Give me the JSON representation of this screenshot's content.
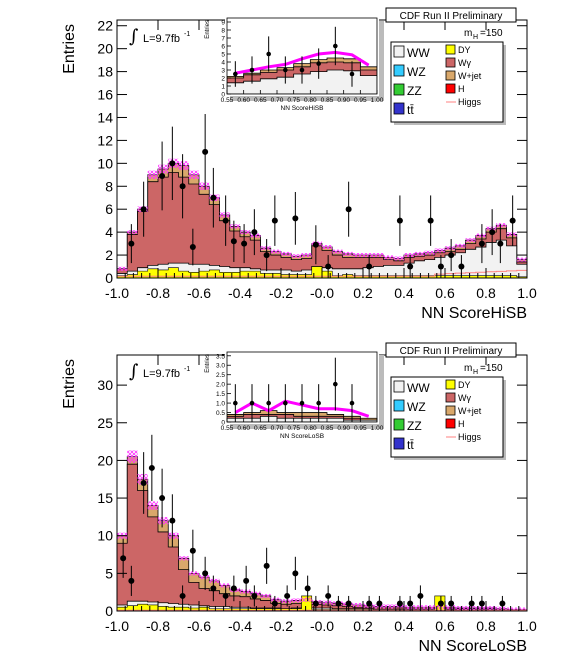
{
  "chart_data": [
    {
      "type": "bar",
      "title": "CDF Run II Preliminary",
      "mass_label": "m",
      "mass_sub": "H",
      "mass_value": "=150",
      "lumi_text": "L=9.7fb",
      "lumi_sup": "-1",
      "integral_symbol": "∫",
      "xlabel": "NN ScoreHiSB",
      "ylabel": "Entries",
      "xlim": [
        -1.0,
        1.0
      ],
      "ylim": [
        0,
        22.5
      ],
      "x_ticks": [
        "-1.0",
        "-0.8",
        "-0.6",
        "-0.4",
        "-0.2",
        "-0.0",
        "0.2",
        "0.4",
        "0.6",
        "0.8",
        "1.0"
      ],
      "y_ticks": [
        "0",
        "2",
        "4",
        "6",
        "8",
        "10",
        "12",
        "14",
        "16",
        "18",
        "20",
        "22"
      ],
      "legend": [
        {
          "label": "WW",
          "color": "#f2f2f2"
        },
        {
          "label": "DY",
          "color": "#ffff00"
        },
        {
          "label": "WZ",
          "color": "#33ccff"
        },
        {
          "label": "Wγ",
          "color": "#cc6666"
        },
        {
          "label": "ZZ",
          "color": "#33cc33"
        },
        {
          "label": "W+jet",
          "color": "#d9a86b"
        },
        {
          "label": "tt̄",
          "color": "#3333cc"
        },
        {
          "label": "H",
          "color": "#ff0000"
        },
        {
          "label": "Higgs",
          "color": "#ff8080"
        }
      ],
      "stack_total": [
        0.8,
        4,
        6,
        9,
        9.5,
        10,
        9.8,
        9,
        8,
        7,
        5.5,
        4.5,
        4,
        3.7,
        2.6,
        2.3,
        2.1,
        1.9,
        2,
        3,
        2.7,
        2.3,
        2.1,
        2,
        2,
        2,
        1.8,
        1.7,
        2,
        2.1,
        2.2,
        2.4,
        2.6,
        2.8,
        3.3,
        3.7,
        4.3,
        4.6,
        3.8,
        1.6
      ],
      "wgamma_top": [
        0.8,
        3.8,
        5.8,
        8.4,
        8.8,
        9.2,
        8.8,
        8.2,
        7.3,
        6.4,
        5.0,
        4.1,
        3.6,
        3.3,
        2.3,
        2.0,
        1.8,
        1.6,
        1.7,
        2.8,
        2.4,
        2.0,
        1.8,
        1.8,
        1.8,
        1.8,
        1.6,
        1.5,
        1.8,
        1.9,
        2.0,
        2.2,
        2.3,
        2.5,
        3.0,
        3.4,
        4.0,
        4.3,
        3.5,
        1.4
      ],
      "ww_top": [
        0.4,
        0.6,
        0.9,
        1.1,
        1.2,
        1.3,
        1.3,
        1.2,
        1.2,
        1.1,
        1.0,
        0.9,
        0.9,
        0.8,
        0.7,
        0.7,
        0.7,
        0.6,
        0.7,
        1.0,
        0.9,
        0.8,
        0.8,
        0.8,
        0.9,
        1.0,
        1.1,
        1.1,
        1.3,
        1.5,
        1.6,
        1.8,
        2.0,
        2.2,
        2.5,
        2.7,
        3.1,
        3.3,
        2.8,
        1.2
      ],
      "dy_top": [
        0.2,
        0.3,
        0.6,
        0.8,
        0.7,
        0.9,
        0.6,
        0.5,
        0.6,
        0.7,
        0.5,
        0.5,
        0.6,
        0.6,
        0.4,
        0.4,
        0.3,
        0.3,
        0.3,
        1.0,
        0.6,
        0.2,
        0.3,
        0.2,
        0.2,
        0.2,
        0.2,
        0.2,
        0.2,
        0.2,
        0.2,
        0.2,
        0.2,
        0.2,
        0.2,
        0.2,
        0.2,
        0.2,
        0.2,
        0.1
      ],
      "points": [
        {
          "x": -0.93,
          "y": 3.0,
          "e": 1.7
        },
        {
          "x": -0.87,
          "y": 6.0,
          "e": 2.4
        },
        {
          "x": -0.78,
          "y": 8.9,
          "e": 3.0
        },
        {
          "x": -0.73,
          "y": 10.0,
          "e": 3.2
        },
        {
          "x": -0.68,
          "y": 8.0,
          "e": 2.8
        },
        {
          "x": -0.63,
          "y": 2.7,
          "e": 1.6
        },
        {
          "x": -0.57,
          "y": 11.0,
          "e": 3.3
        },
        {
          "x": -0.53,
          "y": 7.0,
          "e": 2.6
        },
        {
          "x": -0.47,
          "y": 5.0,
          "e": 2.2
        },
        {
          "x": -0.43,
          "y": 3.2,
          "e": 1.8
        },
        {
          "x": -0.38,
          "y": 3.0,
          "e": 1.7
        },
        {
          "x": -0.33,
          "y": 4.0,
          "e": 2.0
        },
        {
          "x": -0.27,
          "y": 2.0,
          "e": 1.4
        },
        {
          "x": -0.23,
          "y": 5.0,
          "e": 2.2
        },
        {
          "x": -0.13,
          "y": 5.2,
          "e": 2.3
        },
        {
          "x": -0.03,
          "y": 2.9,
          "e": 1.7
        },
        {
          "x": 0.03,
          "y": 1.0,
          "e": 1.0
        },
        {
          "x": 0.13,
          "y": 6.0,
          "e": 2.4
        },
        {
          "x": 0.23,
          "y": 1.0,
          "e": 1.0
        },
        {
          "x": 0.38,
          "y": 5.0,
          "e": 2.2
        },
        {
          "x": 0.43,
          "y": 1.0,
          "e": 1.0
        },
        {
          "x": 0.53,
          "y": 5.0,
          "e": 2.2
        },
        {
          "x": 0.58,
          "y": 1.0,
          "e": 1.0
        },
        {
          "x": 0.63,
          "y": 2.0,
          "e": 1.4
        },
        {
          "x": 0.68,
          "y": 1.0,
          "e": 1.0
        },
        {
          "x": 0.78,
          "y": 3.0,
          "e": 1.7
        },
        {
          "x": 0.83,
          "y": 4.0,
          "e": 2.0
        },
        {
          "x": 0.87,
          "y": 3.0,
          "e": 1.7
        },
        {
          "x": 0.93,
          "y": 5.0,
          "e": 2.2
        }
      ],
      "inset": {
        "xlabel": "NN ScoreHiSB",
        "ylabel": "Entries",
        "xlim": [
          0.55,
          1.0
        ],
        "ylim": [
          0,
          9.5
        ],
        "x_ticks": [
          "0.55",
          "0.60",
          "0.65",
          "0.70",
          "0.75",
          "0.80",
          "0.85",
          "0.90",
          "0.95",
          "1.00"
        ],
        "y_ticks": [
          "0",
          "1",
          "2",
          "3",
          "4",
          "5",
          "6",
          "7",
          "8",
          "9"
        ],
        "stack_total": [
          2.2,
          2.6,
          3.0,
          3.3,
          3.8,
          4.3,
          4.5,
          4.4,
          3.4
        ],
        "wgamma_top": [
          2.0,
          2.4,
          2.7,
          3.0,
          3.4,
          3.9,
          4.0,
          3.9,
          3.0
        ],
        "ww_top": [
          1.4,
          1.6,
          1.9,
          2.1,
          2.5,
          2.8,
          3.0,
          2.9,
          2.3
        ],
        "signal": [
          2.6,
          3.0,
          3.4,
          3.7,
          4.4,
          5.0,
          5.2,
          4.9,
          3.6
        ],
        "points": [
          {
            "x": 0.575,
            "y": 2.5,
            "e": 1.6
          },
          {
            "x": 0.625,
            "y": 3.0,
            "e": 1.7
          },
          {
            "x": 0.675,
            "y": 5.0,
            "e": 2.2
          },
          {
            "x": 0.725,
            "y": 3.0,
            "e": 1.7
          },
          {
            "x": 0.775,
            "y": 3.0,
            "e": 1.7
          },
          {
            "x": 0.825,
            "y": 3.8,
            "e": 1.9
          },
          {
            "x": 0.875,
            "y": 6.0,
            "e": 2.4
          },
          {
            "x": 0.925,
            "y": 2.5,
            "e": 1.6
          }
        ]
      }
    },
    {
      "type": "bar",
      "title": "CDF Run II Preliminary",
      "mass_label": "m",
      "mass_sub": "H",
      "mass_value": "=150",
      "lumi_text": "L=9.7fb",
      "lumi_sup": "-1",
      "integral_symbol": "∫",
      "xlabel": "NN ScoreLoSB",
      "ylabel": "Entries",
      "xlim": [
        -1.0,
        1.0
      ],
      "ylim": [
        0,
        34
      ],
      "x_ticks": [
        "-1.0",
        "-0.8",
        "-0.6",
        "-0.4",
        "-0.2",
        "-0.0",
        "0.2",
        "0.4",
        "0.6",
        "0.8",
        "1.0"
      ],
      "y_ticks": [
        "0",
        "5",
        "10",
        "15",
        "20",
        "25",
        "30"
      ],
      "legend": [
        {
          "label": "WW",
          "color": "#f2f2f2"
        },
        {
          "label": "DY",
          "color": "#ffff00"
        },
        {
          "label": "WZ",
          "color": "#33ccff"
        },
        {
          "label": "Wγ",
          "color": "#cc6666"
        },
        {
          "label": "ZZ",
          "color": "#33cc33"
        },
        {
          "label": "W+jet",
          "color": "#d9a86b"
        },
        {
          "label": "tt̄",
          "color": "#3333cc"
        },
        {
          "label": "H",
          "color": "#ff0000"
        },
        {
          "label": "Higgs",
          "color": "#ff8080"
        }
      ],
      "stack_total": [
        10,
        20.5,
        17.5,
        14,
        12,
        10,
        7,
        5,
        4.5,
        4,
        3.4,
        2.8,
        2.6,
        2.3,
        2,
        1.5,
        1.3,
        1.4,
        1.5,
        1.2,
        1.1,
        1.0,
        0.9,
        0.8,
        0.7,
        0.6,
        0.6,
        0.6,
        0.5,
        0.5,
        0.5,
        0.5,
        0.5,
        0.4,
        0.4,
        0.4,
        0.4,
        0.3,
        0.2,
        0.2
      ],
      "wgamma_top": [
        9,
        19.5,
        16,
        12.5,
        10.5,
        8.5,
        5.5,
        3.8,
        3.0,
        2.7,
        2.3,
        2.0,
        1.9,
        1.6,
        1.4,
        1.0,
        0.9,
        1.0,
        1.1,
        0.9,
        0.8,
        0.7,
        0.6,
        0.5,
        0.5,
        0.4,
        0.4,
        0.4,
        0.3,
        0.3,
        0.3,
        0.3,
        0.3,
        0.3,
        0.3,
        0.3,
        0.3,
        0.2,
        0.1,
        0.1
      ],
      "ww_top": [
        0.8,
        1.3,
        1.3,
        1.2,
        1.1,
        1.0,
        0.9,
        0.8,
        0.7,
        0.6,
        0.6,
        0.5,
        0.5,
        0.4,
        0.4,
        0.4,
        0.3,
        0.4,
        0.5,
        0.4,
        0.4,
        0.3,
        0.3,
        0.3,
        0.3,
        0.2,
        0.2,
        0.2,
        0.2,
        0.2,
        0.2,
        0.2,
        0.2,
        0.2,
        0.2,
        0.2,
        0.2,
        0.1,
        0.1,
        0.1
      ],
      "dy_top": [
        0.5,
        0.7,
        0.9,
        0.8,
        0.6,
        0.5,
        0.5,
        0.4,
        0.5,
        0.3,
        0.3,
        0.3,
        0.3,
        0.3,
        0.3,
        0.3,
        0.3,
        0.3,
        2.0,
        0.2,
        0.2,
        0.2,
        0.2,
        0.2,
        0.2,
        0.1,
        0.1,
        0.1,
        0.1,
        0.1,
        0.1,
        2.0,
        0.1,
        0.1,
        0.1,
        0.1,
        0.1,
        0.1,
        0.1,
        0.1
      ],
      "points": [
        {
          "x": -0.97,
          "y": 7.0,
          "e": 2.6
        },
        {
          "x": -0.93,
          "y": 4.0,
          "e": 2.0
        },
        {
          "x": -0.87,
          "y": 17.0,
          "e": 4.1
        },
        {
          "x": -0.83,
          "y": 19.0,
          "e": 4.4
        },
        {
          "x": -0.78,
          "y": 15.0,
          "e": 3.9
        },
        {
          "x": -0.73,
          "y": 12.0,
          "e": 3.5
        },
        {
          "x": -0.68,
          "y": 2.0,
          "e": 1.4
        },
        {
          "x": -0.63,
          "y": 8.0,
          "e": 2.8
        },
        {
          "x": -0.57,
          "y": 5.0,
          "e": 2.2
        },
        {
          "x": -0.53,
          "y": 3.0,
          "e": 1.7
        },
        {
          "x": -0.47,
          "y": 2.0,
          "e": 1.4
        },
        {
          "x": -0.43,
          "y": 3.0,
          "e": 1.7
        },
        {
          "x": -0.37,
          "y": 4.0,
          "e": 2.0
        },
        {
          "x": -0.33,
          "y": 2.0,
          "e": 1.4
        },
        {
          "x": -0.27,
          "y": 6.0,
          "e": 2.4
        },
        {
          "x": -0.23,
          "y": 1.0,
          "e": 1.0
        },
        {
          "x": -0.17,
          "y": 2.0,
          "e": 1.4
        },
        {
          "x": -0.13,
          "y": 5.0,
          "e": 2.2
        },
        {
          "x": -0.07,
          "y": 3.0,
          "e": 1.7
        },
        {
          "x": -0.03,
          "y": 1.0,
          "e": 1.0
        },
        {
          "x": 0.03,
          "y": 2.0,
          "e": 1.4
        },
        {
          "x": 0.08,
          "y": 1.0,
          "e": 1.0
        },
        {
          "x": 0.13,
          "y": 1.0,
          "e": 1.0
        },
        {
          "x": 0.23,
          "y": 1.0,
          "e": 1.0
        },
        {
          "x": 0.28,
          "y": 1.0,
          "e": 1.0
        },
        {
          "x": 0.38,
          "y": 1.0,
          "e": 1.0
        },
        {
          "x": 0.43,
          "y": 1.0,
          "e": 1.0
        },
        {
          "x": 0.48,
          "y": 2.0,
          "e": 1.4
        },
        {
          "x": 0.58,
          "y": 1.0,
          "e": 1.0
        },
        {
          "x": 0.63,
          "y": 1.0,
          "e": 1.0
        },
        {
          "x": 0.73,
          "y": 1.0,
          "e": 1.0
        },
        {
          "x": 0.78,
          "y": 1.0,
          "e": 1.0
        },
        {
          "x": 0.88,
          "y": 1.0,
          "e": 1.0
        }
      ],
      "inset": {
        "xlabel": "NN ScoreLoSB",
        "ylabel": "Entries",
        "xlim": [
          0.55,
          1.0
        ],
        "ylim": [
          0,
          3.7
        ],
        "x_ticks": [
          "0.55",
          "0.60",
          "0.65",
          "0.70",
          "0.75",
          "0.80",
          "0.85",
          "0.90",
          "0.95",
          "1.00"
        ],
        "y_ticks": [
          "0",
          "0.5",
          "1.0",
          "1.5",
          "2.0",
          "2.5",
          "3.0",
          "3.5"
        ],
        "stack_total": [
          0.4,
          0.5,
          0.6,
          0.5,
          0.5,
          0.5,
          0.4,
          0.3,
          0.2
        ],
        "wgamma_top": [
          0.3,
          0.4,
          0.4,
          0.4,
          0.3,
          0.3,
          0.3,
          0.2,
          0.1
        ],
        "ww_top": [
          0.2,
          0.2,
          0.3,
          0.2,
          0.2,
          0.2,
          0.2,
          0.1,
          0.1
        ],
        "signal": [
          0.5,
          1.0,
          0.6,
          1.1,
          0.9,
          0.7,
          0.7,
          0.6,
          0.3
        ],
        "points": [
          {
            "x": 0.575,
            "y": 1.0,
            "e": 1.0
          },
          {
            "x": 0.625,
            "y": 1.0,
            "e": 1.0
          },
          {
            "x": 0.675,
            "y": 1.0,
            "e": 1.0
          },
          {
            "x": 0.725,
            "y": 1.0,
            "e": 1.0
          },
          {
            "x": 0.775,
            "y": 1.0,
            "e": 1.0
          },
          {
            "x": 0.825,
            "y": 1.0,
            "e": 1.0
          },
          {
            "x": 0.875,
            "y": 2.0,
            "e": 1.4
          },
          {
            "x": 0.925,
            "y": 1.0,
            "e": 1.0
          }
        ]
      }
    }
  ]
}
